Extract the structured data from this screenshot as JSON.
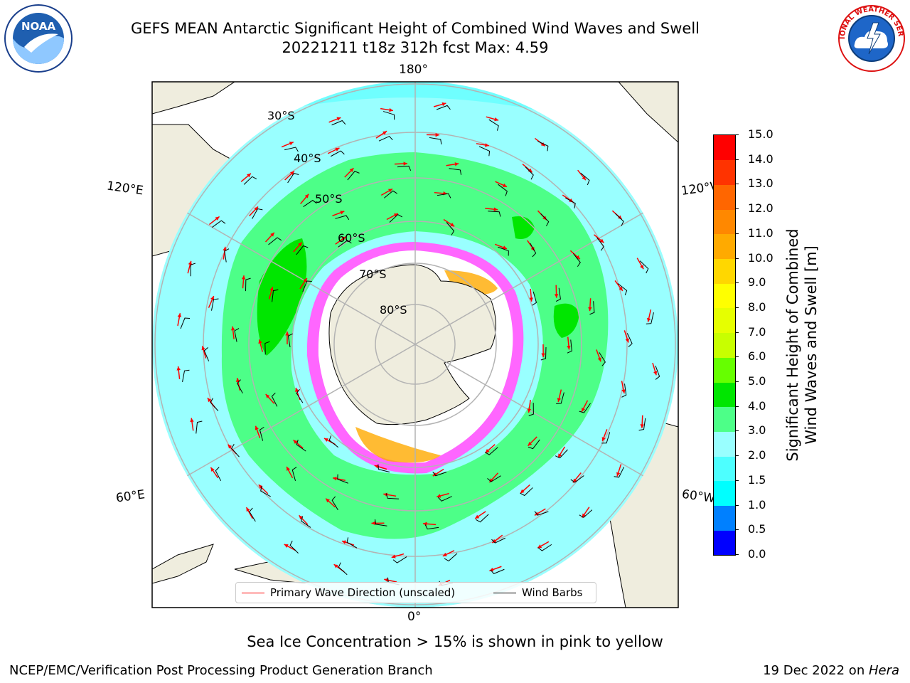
{
  "title": {
    "line1": "GEFS MEAN Antarctic Significant Height of Combined Wind Waves and Swell",
    "line2": "20221211 t18z 312h fcst   Max: 4.59"
  },
  "logos": {
    "left": {
      "name": "noaa-logo",
      "text": "NOAA"
    },
    "right": {
      "name": "nws-logo",
      "text": "NATIONAL WEATHER SERVICE"
    }
  },
  "map": {
    "projection": "south polar stereographic",
    "longitude_labels": {
      "top": "180°",
      "upper_left": "120°E",
      "upper_right": "120°W",
      "lower_left": "60°E",
      "lower_right": "60°W",
      "bottom": "0°"
    },
    "latitude_labels": [
      "30°S",
      "40°S",
      "50°S",
      "60°S",
      "70°S",
      "80°S"
    ],
    "colors": {
      "land": "#efedde",
      "ocean_low": "#99ffff",
      "ocean_mid": "#4dff88",
      "ocean_high": "#00e600",
      "ice": "#ff66ff",
      "grid": "#b3b3b3",
      "arrow": "#ff0000"
    }
  },
  "legend": {
    "primary_wave": "Primary Wave Direction (unscaled)",
    "wind_barbs": "Wind Barbs",
    "primary_color": "#ff0000",
    "barb_color": "#000000"
  },
  "colorbar": {
    "label_line1": "Significant Height of Combined",
    "label_line2": "Wind Waves and Swell [m]",
    "ticks": [
      "0.0",
      "0.5",
      "1.0",
      "1.5",
      "2.0",
      "3.0",
      "4.0",
      "5.0",
      "6.0",
      "7.0",
      "8.0",
      "9.0",
      "10.0",
      "11.0",
      "12.0",
      "13.0",
      "14.0",
      "15.0"
    ],
    "colors": [
      "#0000ff",
      "#0080ff",
      "#00ffff",
      "#4dffff",
      "#99ffff",
      "#4dff88",
      "#00e600",
      "#66ff00",
      "#c8ff00",
      "#e6ff00",
      "#ffff00",
      "#ffd700",
      "#ffaa00",
      "#ff8800",
      "#ff6600",
      "#ff3300",
      "#ff0000"
    ]
  },
  "footer": {
    "ice_note": "Sea Ice Concentration > 15% is shown in pink to yellow",
    "credit": "NCEP/EMC/Verification Post Processing Product Generation Branch",
    "date": "19 Dec 2022 on ",
    "host": "Hera"
  }
}
